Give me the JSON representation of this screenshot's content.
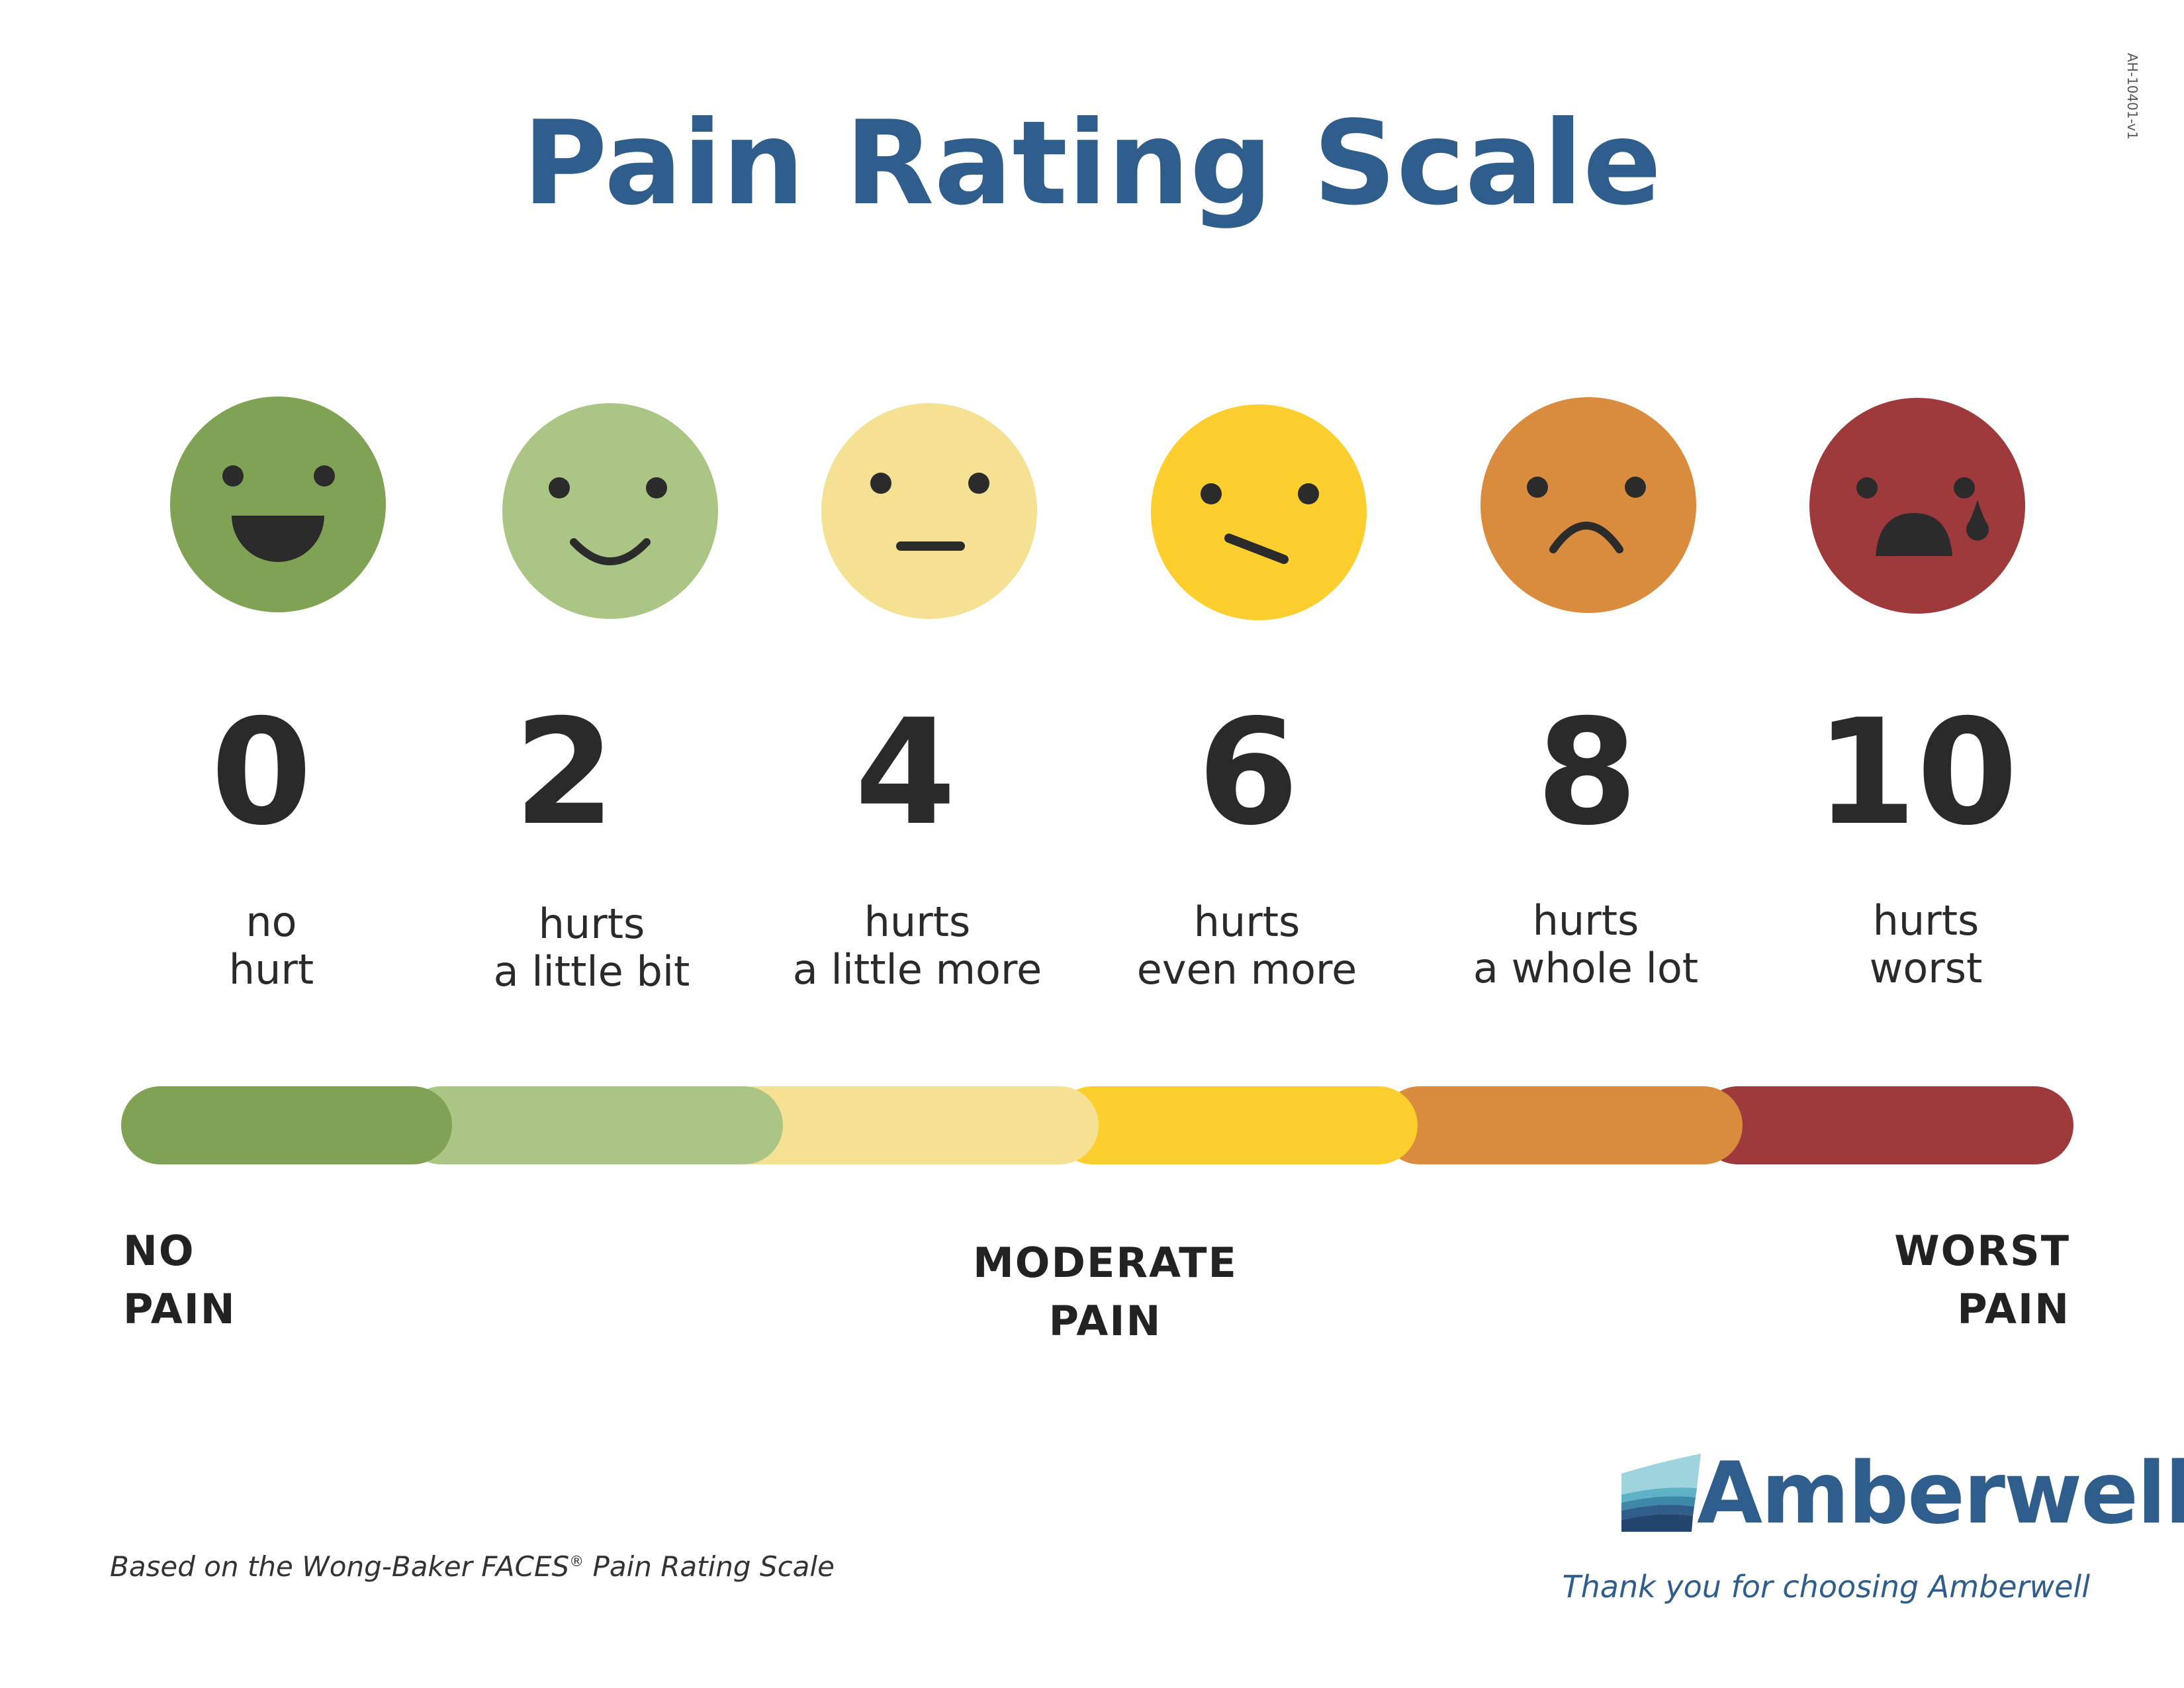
{
  "doc_code": "AH-10401-v1",
  "title": "Pain Rating Scale",
  "colors": {
    "title": "#2f5d8c",
    "ink": "#2a2a2a",
    "face_features": "#2b2b2b"
  },
  "levels": [
    {
      "value": "0",
      "face": "laughing-face-icon",
      "color": "#7fa254",
      "desc": [
        "no",
        "hurt"
      ]
    },
    {
      "value": "2",
      "face": "smiling-face-icon",
      "color": "#aac584",
      "desc": [
        "hurts",
        "a little bit"
      ]
    },
    {
      "value": "4",
      "face": "neutral-face-icon",
      "color": "#f5e193",
      "desc": [
        "hurts",
        "a little more"
      ]
    },
    {
      "value": "6",
      "face": "slanted-mouth-face-icon",
      "color": "#fdcf2e",
      "desc": [
        "hurts",
        "even more"
      ]
    },
    {
      "value": "8",
      "face": "frowning-face-icon",
      "color": "#d98c3d",
      "desc": [
        "hurts",
        "a whole lot"
      ]
    },
    {
      "value": "10",
      "face": "crying-face-icon",
      "color": "#9e3a3b",
      "desc": [
        "hurts",
        "worst"
      ]
    }
  ],
  "scale_anchors": {
    "low": [
      "NO",
      "PAIN"
    ],
    "mid": [
      "MODERATE",
      "PAIN"
    ],
    "high": [
      "WORST",
      "PAIN"
    ]
  },
  "footnote": {
    "text": "Based on the Wong-Baker FACES",
    "reg_mark": "®",
    "text_after": " Pain Rating Scale"
  },
  "brand": {
    "name": "Amberwell",
    "tagline": "Thank you for choosing Amberwell",
    "logo": "wave-sails-logo-icon"
  }
}
